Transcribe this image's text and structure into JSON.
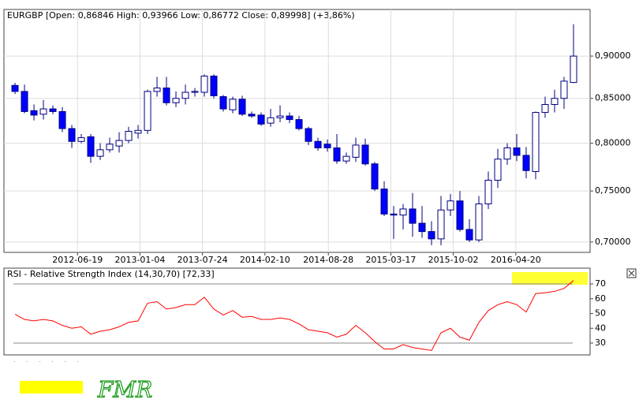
{
  "chart_data": [
    {
      "type": "candlestick",
      "title": "EURGBP [Open: 0,86846  High: 0,93966  Low: 0,86772  Close: 0,89998] (+3,86%)",
      "x": [
        0,
        1,
        2,
        3,
        4,
        5,
        6,
        7,
        8,
        9,
        10,
        11,
        12,
        13,
        14,
        15,
        16,
        17,
        18,
        19,
        20,
        21,
        22,
        23,
        24,
        25,
        26,
        27,
        28,
        29,
        30,
        31,
        32,
        33,
        34,
        35,
        36,
        37,
        38,
        39,
        40,
        41,
        42,
        43,
        44,
        45,
        46,
        47,
        48,
        49,
        50,
        51,
        52,
        53,
        54,
        55,
        56,
        57,
        58,
        59
      ],
      "open": [
        0.865,
        0.858,
        0.836,
        0.832,
        0.838,
        0.835,
        0.816,
        0.802,
        0.807,
        0.786,
        0.793,
        0.797,
        0.803,
        0.811,
        0.814,
        0.858,
        0.862,
        0.845,
        0.85,
        0.857,
        0.857,
        0.876,
        0.852,
        0.837,
        0.849,
        0.832,
        0.831,
        0.822,
        0.828,
        0.83,
        0.826,
        0.816,
        0.802,
        0.799,
        0.795,
        0.781,
        0.785,
        0.798,
        0.778,
        0.752,
        0.727,
        0.726,
        0.732,
        0.718,
        0.71,
        0.703,
        0.731,
        0.74,
        0.712,
        0.702,
        0.737,
        0.761,
        0.783,
        0.795,
        0.787,
        0.77,
        0.834,
        0.843,
        0.85,
        0.86846
      ],
      "high": [
        0.868,
        0.866,
        0.843,
        0.848,
        0.842,
        0.84,
        0.82,
        0.81,
        0.81,
        0.8,
        0.806,
        0.812,
        0.818,
        0.82,
        0.86,
        0.875,
        0.875,
        0.858,
        0.866,
        0.862,
        0.878,
        0.878,
        0.854,
        0.852,
        0.853,
        0.835,
        0.834,
        0.838,
        0.842,
        0.834,
        0.83,
        0.818,
        0.806,
        0.804,
        0.81,
        0.79,
        0.806,
        0.805,
        0.78,
        0.76,
        0.735,
        0.737,
        0.748,
        0.735,
        0.72,
        0.745,
        0.747,
        0.75,
        0.722,
        0.745,
        0.77,
        0.794,
        0.8,
        0.81,
        0.796,
        0.835,
        0.852,
        0.86,
        0.875,
        0.93966
      ],
      "low": [
        0.855,
        0.833,
        0.825,
        0.826,
        0.832,
        0.812,
        0.795,
        0.8,
        0.779,
        0.782,
        0.79,
        0.79,
        0.8,
        0.805,
        0.81,
        0.852,
        0.842,
        0.84,
        0.843,
        0.852,
        0.852,
        0.85,
        0.835,
        0.833,
        0.83,
        0.828,
        0.819,
        0.818,
        0.823,
        0.822,
        0.814,
        0.798,
        0.792,
        0.791,
        0.778,
        0.778,
        0.78,
        0.776,
        0.75,
        0.725,
        0.703,
        0.712,
        0.705,
        0.704,
        0.697,
        0.697,
        0.725,
        0.71,
        0.7,
        0.7,
        0.732,
        0.753,
        0.777,
        0.781,
        0.763,
        0.762,
        0.828,
        0.834,
        0.838,
        0.86772
      ],
      "close": [
        0.858,
        0.835,
        0.831,
        0.838,
        0.835,
        0.816,
        0.802,
        0.806,
        0.786,
        0.793,
        0.799,
        0.803,
        0.813,
        0.814,
        0.858,
        0.862,
        0.845,
        0.85,
        0.857,
        0.858,
        0.876,
        0.853,
        0.838,
        0.849,
        0.832,
        0.83,
        0.821,
        0.828,
        0.83,
        0.826,
        0.816,
        0.802,
        0.795,
        0.795,
        0.781,
        0.786,
        0.798,
        0.778,
        0.752,
        0.727,
        0.726,
        0.732,
        0.718,
        0.71,
        0.703,
        0.731,
        0.74,
        0.712,
        0.702,
        0.737,
        0.761,
        0.783,
        0.795,
        0.787,
        0.771,
        0.834,
        0.843,
        0.85,
        0.87,
        0.89998
      ],
      "up_color": "#ffffff",
      "down_color": "#0000ff",
      "edge_color": "#000080",
      "xlim": [
        -1.17,
        60.75
      ],
      "xticks": [
        {
          "value": 6.6,
          "label": "2012-06-19"
        },
        {
          "value": 13.2,
          "label": "2013-01-04"
        },
        {
          "value": 19.8,
          "label": "2013-07-24"
        },
        {
          "value": 26.4,
          "label": "2014-02-10"
        },
        {
          "value": 33.1,
          "label": "2014-08-28"
        },
        {
          "value": 39.7,
          "label": "2015-03-17"
        },
        {
          "value": 46.3,
          "label": "2015-10-02"
        },
        {
          "value": 52.9,
          "label": "2016-04-20"
        }
      ],
      "ylim": [
        0.6903,
        0.9585
      ],
      "log": true,
      "yticks": [
        {
          "value": 0.7,
          "label": "0,70000"
        },
        {
          "value": 0.75,
          "label": "0,75000"
        },
        {
          "value": 0.8,
          "label": "0,80000"
        },
        {
          "value": 0.85,
          "label": "0,85000"
        },
        {
          "value": 0.9,
          "label": "0,90000"
        }
      ],
      "grid": true
    },
    {
      "type": "line",
      "title": "RSI - Relative Strength Index (14,30,70) [72,33]",
      "x": [
        0,
        1,
        2,
        3,
        4,
        5,
        6,
        7,
        8,
        9,
        10,
        11,
        12,
        13,
        14,
        15,
        16,
        17,
        18,
        19,
        20,
        21,
        22,
        23,
        24,
        25,
        26,
        27,
        28,
        29,
        30,
        31,
        32,
        33,
        34,
        35,
        36,
        37,
        38,
        39,
        40,
        41,
        42,
        43,
        44,
        45,
        46,
        47,
        48,
        49,
        50,
        51,
        52,
        53,
        54,
        55,
        56,
        57,
        58,
        59
      ],
      "values": [
        49.5,
        46,
        45,
        46,
        45,
        42,
        40,
        41,
        36,
        38,
        39,
        41,
        44,
        45,
        57,
        58,
        53,
        54,
        56,
        56,
        61,
        53,
        49,
        52,
        47.5,
        48,
        46,
        46,
        47,
        46,
        43,
        39,
        38,
        37,
        34,
        36,
        42,
        37,
        31,
        26,
        26,
        29,
        27,
        26,
        25,
        37,
        40,
        34,
        32,
        44,
        52,
        56,
        58,
        56,
        51,
        63.5,
        64,
        65,
        67,
        72.33
      ],
      "color": "#ff0000",
      "xlim": [
        -1.17,
        60.75
      ],
      "ylim": [
        22,
        80.7
      ],
      "yticks": [
        30,
        40,
        50,
        60,
        70
      ],
      "levels": [
        70,
        30
      ]
    }
  ],
  "footer": {
    "signature": "FMR"
  }
}
